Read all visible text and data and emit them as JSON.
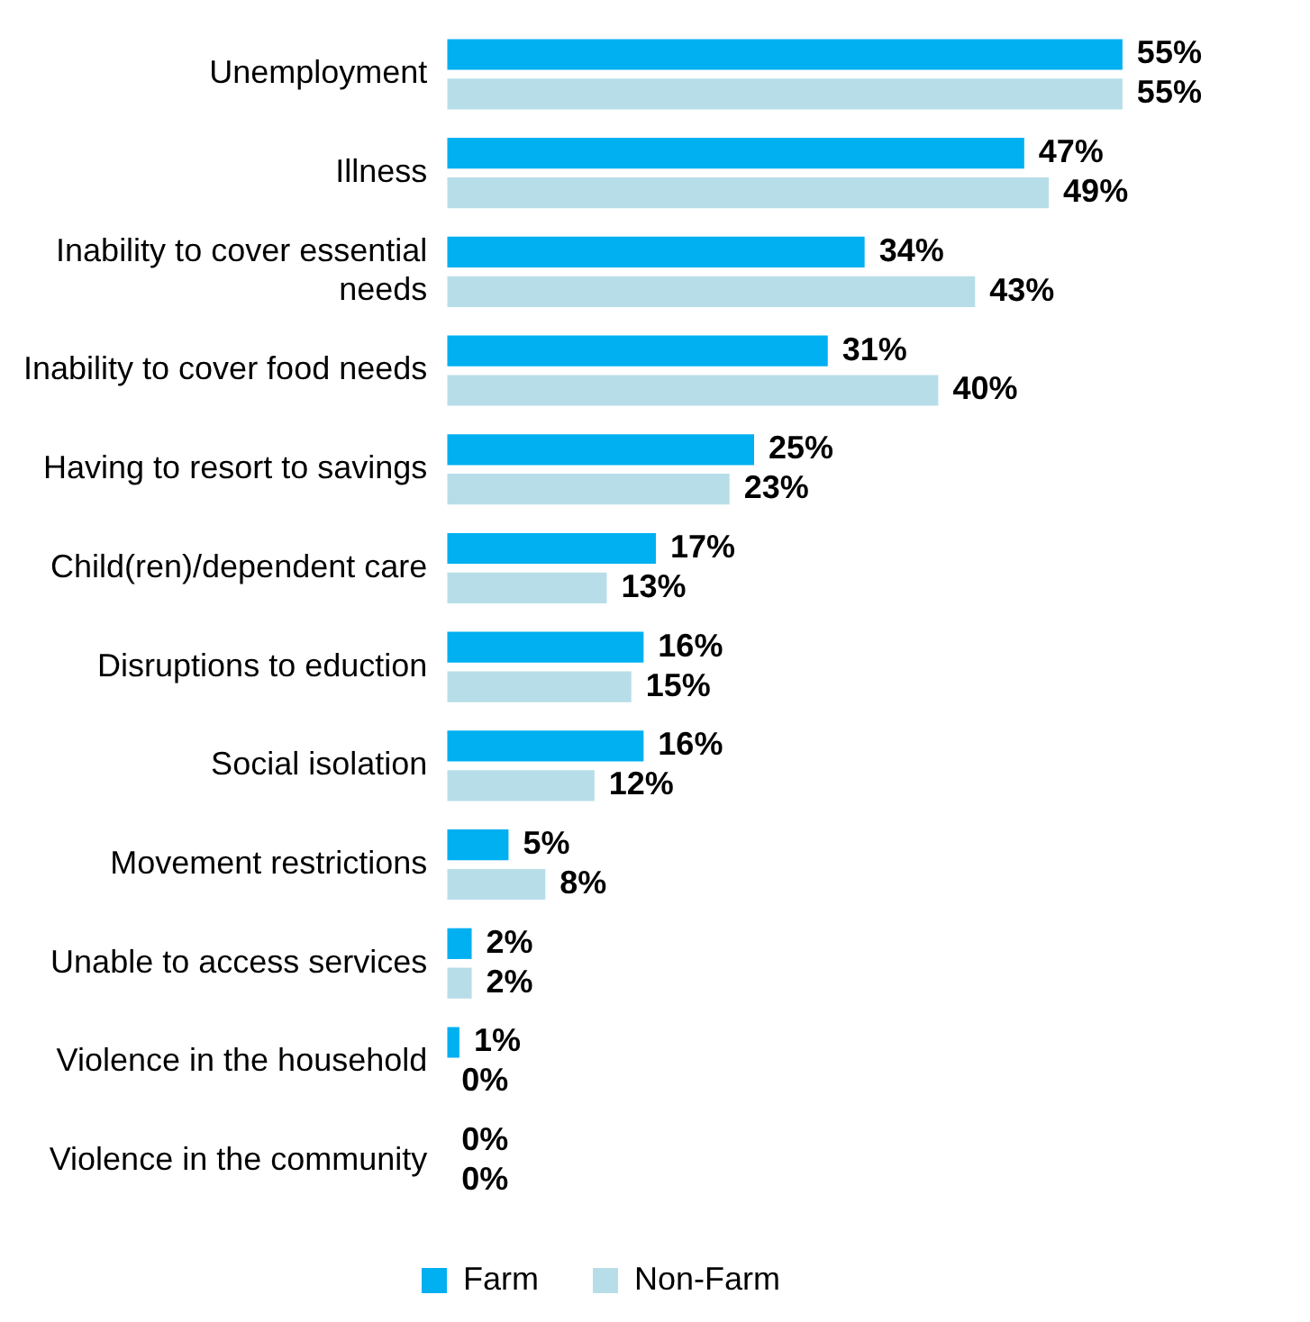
{
  "chart_data": {
    "type": "bar",
    "orientation": "horizontal",
    "categories": [
      "Unemployment",
      "Illness",
      "Inability to cover essential needs",
      "Inability to cover food needs",
      "Having to resort to savings",
      "Child(ren)/dependent care",
      "Disruptions to eduction",
      "Social isolation",
      "Movement restrictions",
      "Unable to access services",
      "Violence in the household",
      "Violence in the community"
    ],
    "series": [
      {
        "name": "Farm",
        "color": "#00b0f0",
        "values": [
          55,
          47,
          34,
          31,
          25,
          17,
          16,
          16,
          5,
          2,
          1,
          0
        ],
        "value_labels": [
          "55%",
          "47%",
          "34%",
          "31%",
          "25%",
          "17%",
          "16%",
          "16%",
          "5%",
          "2%",
          "1%",
          "0%"
        ]
      },
      {
        "name": "Non-Farm",
        "color": "#b7dee8",
        "values": [
          55,
          49,
          43,
          40,
          23,
          13,
          15,
          12,
          8,
          2,
          0,
          0
        ],
        "value_labels": [
          "55%",
          "49%",
          "43%",
          "40%",
          "23%",
          "13%",
          "15%",
          "12%",
          "8%",
          "2%",
          "0%",
          "0%"
        ]
      }
    ],
    "legend": "bottom"
  }
}
